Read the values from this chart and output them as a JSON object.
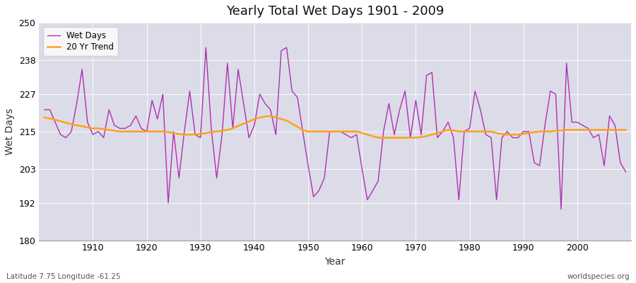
{
  "title": "Yearly Total Wet Days 1901 - 2009",
  "xlabel": "Year",
  "ylabel": "Wet Days",
  "subtitle_left": "Latitude 7.75 Longitude -61.25",
  "subtitle_right": "worldspecies.org",
  "ylim": [
    180,
    250
  ],
  "yticks": [
    180,
    192,
    203,
    215,
    227,
    238,
    250
  ],
  "line_color": "#b030b0",
  "trend_color": "#ffa020",
  "fig_bg_color": "#ffffff",
  "plot_bg_color": "#dcdce8",
  "wet_days": [
    222,
    222,
    218,
    214,
    213,
    215,
    224,
    235,
    218,
    214,
    215,
    213,
    222,
    217,
    216,
    216,
    217,
    220,
    216,
    215,
    225,
    219,
    227,
    192,
    215,
    200,
    215,
    228,
    214,
    213,
    242,
    216,
    200,
    214,
    237,
    216,
    235,
    224,
    213,
    217,
    227,
    224,
    222,
    214,
    241,
    242,
    228,
    226,
    215,
    204,
    194,
    196,
    200,
    215,
    215,
    215,
    214,
    213,
    214,
    203,
    193,
    196,
    199,
    215,
    224,
    214,
    222,
    228,
    213,
    225,
    214,
    233,
    234,
    213,
    215,
    218,
    213,
    193,
    215,
    216,
    228,
    222,
    214,
    213,
    193,
    213,
    215,
    213,
    213,
    215,
    215,
    205,
    204,
    217,
    228,
    227,
    190,
    237,
    218,
    218,
    217,
    216,
    213,
    214,
    204,
    220,
    217,
    205,
    202
  ],
  "trend_days": [
    219.5,
    219.2,
    218.8,
    218.3,
    217.8,
    217.3,
    217.0,
    216.7,
    216.3,
    216.0,
    216.0,
    215.8,
    215.5,
    215.2,
    215.0,
    215.0,
    215.0,
    215.0,
    215.0,
    215.0,
    215.0,
    215.0,
    215.0,
    214.8,
    214.5,
    214.2,
    214.0,
    214.0,
    214.0,
    214.2,
    214.5,
    214.8,
    215.0,
    215.2,
    215.5,
    216.0,
    216.8,
    217.5,
    218.2,
    219.0,
    219.5,
    219.8,
    220.0,
    219.5,
    219.0,
    218.5,
    217.5,
    216.5,
    215.5,
    215.0,
    215.0,
    215.0,
    215.0,
    215.0,
    215.0,
    215.0,
    215.0,
    215.0,
    215.0,
    214.5,
    214.0,
    213.5,
    213.0,
    213.0,
    213.0,
    213.0,
    213.0,
    213.0,
    213.0,
    213.0,
    213.2,
    213.5,
    214.0,
    214.5,
    215.0,
    215.5,
    215.3,
    215.0,
    215.0,
    215.0,
    215.0,
    215.0,
    215.0,
    215.0,
    214.5,
    214.2,
    214.0,
    214.0,
    214.0,
    214.2,
    214.5,
    214.8,
    215.0,
    215.0,
    215.0,
    215.2,
    215.3,
    215.5,
    215.5,
    215.5,
    215.5,
    215.5,
    215.5,
    215.5,
    215.5,
    215.5,
    215.5,
    215.5,
    215.5
  ],
  "start_year": 1901,
  "end_year": 2009
}
